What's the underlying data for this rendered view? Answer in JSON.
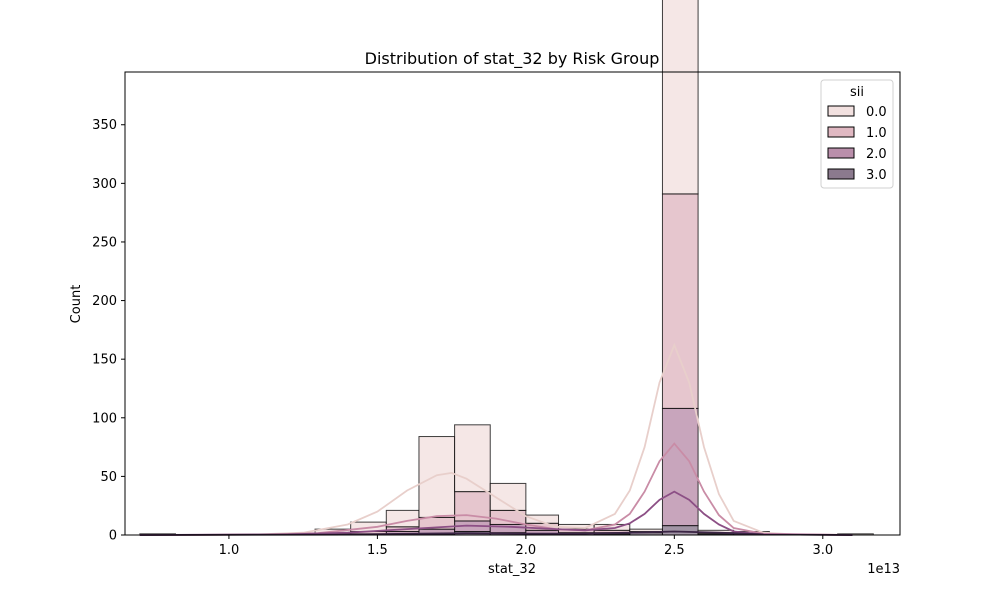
{
  "chart_data": {
    "type": "histogram",
    "title": "Distribution of stat_32 by Risk Group",
    "xlabel": "stat_32",
    "ylabel": "Count",
    "x_offset_label": "1e13",
    "xlim": [
      0.65,
      3.26
    ],
    "ylim": [
      0,
      395
    ],
    "xticks": [
      1.0,
      1.5,
      2.0,
      2.5,
      3.0
    ],
    "xtick_labels": [
      "1.0",
      "1.5",
      "2.0",
      "2.5",
      "3.0"
    ],
    "yticks": [
      0,
      50,
      100,
      150,
      200,
      250,
      300,
      350
    ],
    "ytick_labels": [
      "0",
      "50",
      "100",
      "150",
      "200",
      "250",
      "300",
      "350"
    ],
    "grid": false,
    "legend": {
      "title": "sii",
      "position": "top-right"
    },
    "bin_edges": [
      0.7,
      0.82,
      0.94,
      1.06,
      1.17,
      1.29,
      1.41,
      1.53,
      1.64,
      1.76,
      1.88,
      2.0,
      2.11,
      2.23,
      2.35,
      2.46,
      2.58,
      2.7,
      2.82,
      2.93,
      3.05,
      3.17
    ],
    "series": [
      {
        "name": "0.0",
        "color": "#f2e1e0",
        "kde_color": "#e8cfcb",
        "counts": [
          1,
          0,
          0,
          0,
          1,
          4,
          8,
          14,
          69,
          57,
          23,
          7,
          4,
          5,
          2,
          379,
          2,
          2,
          0,
          0,
          1
        ],
        "kde": {
          "x": [
            0.7,
            0.9,
            1.1,
            1.25,
            1.4,
            1.5,
            1.6,
            1.7,
            1.75,
            1.8,
            1.9,
            2.0,
            2.1,
            2.2,
            2.3,
            2.35,
            2.4,
            2.45,
            2.5,
            2.55,
            2.6,
            2.65,
            2.7,
            2.8,
            2.9,
            3.1
          ],
          "y": [
            0,
            0,
            0.5,
            2,
            9,
            20,
            38,
            51,
            53,
            48,
            32,
            16,
            7,
            6,
            18,
            38,
            75,
            130,
            162,
            130,
            75,
            35,
            12,
            2,
            0.5,
            0
          ]
        }
      },
      {
        "name": "1.0",
        "color": "#e0b8c2",
        "kde_color": "#c98ca6",
        "counts": [
          0,
          0,
          0,
          0,
          0,
          1,
          2,
          4,
          10,
          25,
          12,
          6,
          3,
          2,
          1,
          183,
          1,
          1,
          0,
          0,
          0
        ],
        "kde": {
          "x": [
            0.7,
            1.1,
            1.3,
            1.5,
            1.6,
            1.7,
            1.8,
            1.9,
            2.0,
            2.1,
            2.2,
            2.3,
            2.35,
            2.4,
            2.45,
            2.5,
            2.55,
            2.6,
            2.65,
            2.7,
            2.8,
            3.1
          ],
          "y": [
            0,
            0.3,
            1.5,
            7,
            12,
            16,
            17,
            14,
            9,
            5,
            4,
            9,
            18,
            37,
            63,
            78,
            63,
            37,
            17,
            6,
            1,
            0
          ]
        }
      },
      {
        "name": "2.0",
        "color": "#ba8fab",
        "kde_color": "#8c4f85",
        "counts": [
          0,
          0,
          0,
          0,
          0,
          0,
          1,
          2,
          4,
          9,
          7,
          3,
          2,
          1,
          0,
          100,
          0,
          0,
          0,
          0,
          0
        ],
        "kde": {
          "x": [
            0.7,
            1.2,
            1.4,
            1.6,
            1.8,
            1.95,
            2.1,
            2.2,
            2.3,
            2.35,
            2.4,
            2.45,
            2.5,
            2.55,
            2.6,
            2.65,
            2.7,
            2.8,
            3.1
          ],
          "y": [
            0,
            0.5,
            2,
            5,
            8,
            7,
            5,
            4,
            6,
            10,
            18,
            30,
            37,
            30,
            18,
            9,
            3,
            0.5,
            0
          ]
        }
      },
      {
        "name": "3.0",
        "color": "#8b7a8e",
        "kde_color": "#3b2545",
        "counts": [
          0,
          0,
          0,
          0,
          0,
          0,
          0,
          1,
          1,
          3,
          2,
          1,
          0,
          1,
          2,
          8,
          1,
          0,
          0,
          0,
          0
        ],
        "kde": {
          "x": [
            0.7,
            1.4,
            1.6,
            1.8,
            2.0,
            2.2,
            2.35,
            2.5,
            2.65,
            2.8,
            3.1
          ],
          "y": [
            0,
            0.3,
            1,
            1.5,
            1.2,
            1.2,
            2,
            3,
            2,
            0.5,
            0
          ]
        }
      }
    ]
  }
}
